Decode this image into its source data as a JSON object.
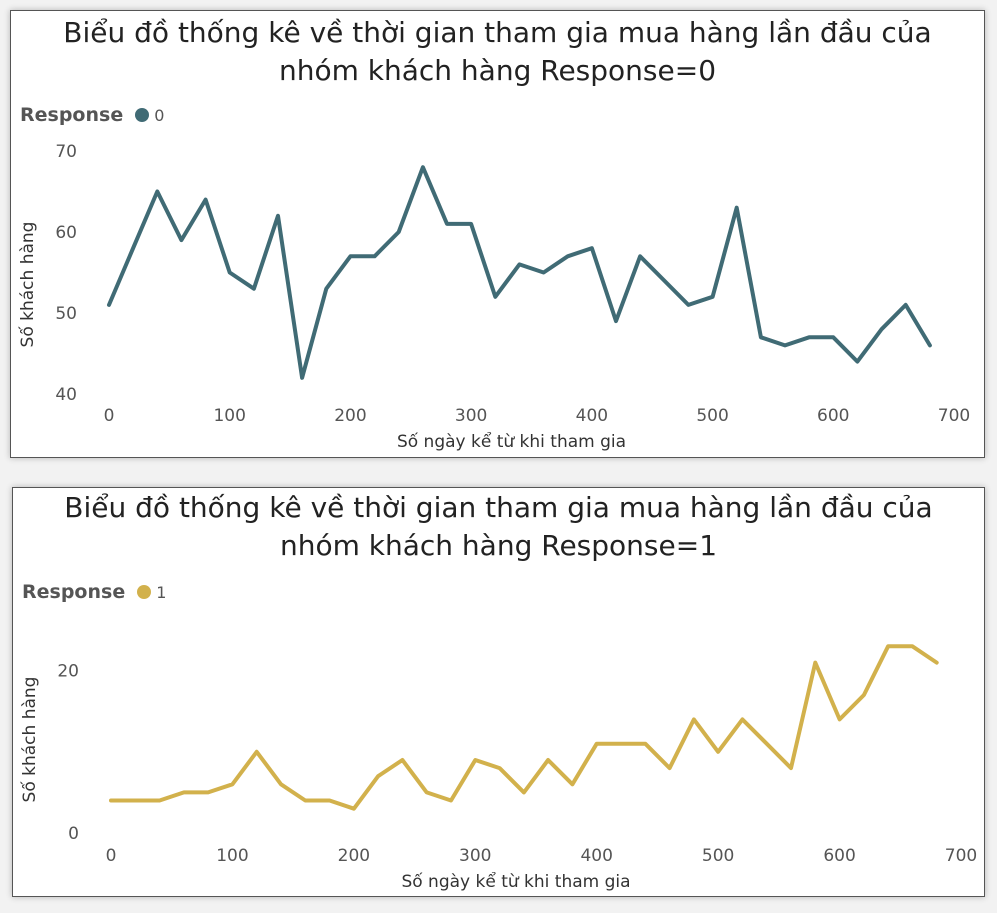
{
  "chart_data": [
    {
      "type": "line",
      "title_line1": "Biểu đồ thống kê về thời gian tham gia mua hàng lần đầu của",
      "title_line2": "nhóm khách hàng Response=0",
      "legend_title": "Response",
      "legend_position": "top-left",
      "xlabel": "Số ngày kể từ khi tham gia",
      "ylabel": "Số khách hàng",
      "xlim": [
        0,
        700
      ],
      "ylim": [
        40,
        70
      ],
      "xticks": [
        0,
        100,
        200,
        300,
        400,
        500,
        600,
        700
      ],
      "yticks": [
        40,
        50,
        60,
        70
      ],
      "grid": false,
      "series": [
        {
          "name": "0",
          "color": "#406b75",
          "x": [
            0,
            20,
            40,
            60,
            80,
            100,
            120,
            140,
            160,
            180,
            200,
            220,
            240,
            260,
            280,
            300,
            320,
            340,
            360,
            380,
            400,
            420,
            440,
            460,
            480,
            500,
            520,
            540,
            560,
            580,
            600,
            620,
            640,
            660,
            680
          ],
          "values": [
            51,
            58,
            65,
            59,
            64,
            55,
            53,
            62,
            42,
            53,
            57,
            57,
            60,
            68,
            61,
            61,
            52,
            56,
            55,
            57,
            58,
            49,
            57,
            54,
            51,
            52,
            63,
            47,
            46,
            47,
            47,
            44,
            48,
            51,
            46
          ]
        }
      ]
    },
    {
      "type": "line",
      "title_line1": "Biểu đồ thống kê về thời gian tham gia mua hàng lần đầu của",
      "title_line2": "nhóm khách hàng Response=1",
      "legend_title": "Response",
      "legend_position": "top-left",
      "xlabel": "Số ngày kể từ khi tham gia",
      "ylabel": "Số khách hàng",
      "xlim": [
        0,
        700
      ],
      "ylim": [
        0,
        26
      ],
      "xticks": [
        0,
        100,
        200,
        300,
        400,
        500,
        600,
        700
      ],
      "yticks": [
        0,
        20
      ],
      "grid": false,
      "series": [
        {
          "name": "1",
          "color": "#d2b14c",
          "x": [
            0,
            20,
            40,
            60,
            80,
            100,
            120,
            140,
            160,
            180,
            200,
            220,
            240,
            260,
            280,
            300,
            320,
            340,
            360,
            380,
            400,
            420,
            440,
            460,
            480,
            500,
            520,
            540,
            560,
            580,
            600,
            620,
            640,
            660,
            680
          ],
          "values": [
            4,
            4,
            4,
            5,
            5,
            6,
            10,
            6,
            4,
            4,
            3,
            7,
            9,
            5,
            4,
            9,
            8,
            5,
            9,
            6,
            11,
            11,
            11,
            8,
            14,
            10,
            14,
            11,
            8,
            21,
            14,
            17,
            23,
            23,
            21
          ]
        }
      ]
    }
  ]
}
